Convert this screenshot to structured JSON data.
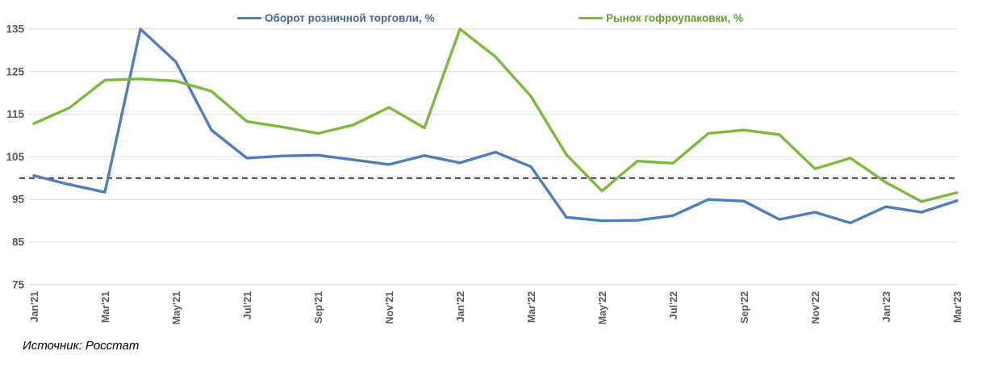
{
  "source_note": "Источник: Росстат",
  "legend": {
    "items": [
      {
        "label": "Оборот розничной торговли, %",
        "color": "#4E7EBE",
        "text_color": "#44699B"
      },
      {
        "label": "Рынок гофроупаковки, %",
        "color": "#7CBA3D",
        "text_color": "#63A02F"
      }
    ]
  },
  "chart_data": {
    "type": "line",
    "title": "",
    "xlabel": "",
    "ylabel": "",
    "x": [
      "Jan'21",
      "Feb'21",
      "Mar'21",
      "Apr'21",
      "May'21",
      "Jun'21",
      "Jul'21",
      "Aug'21",
      "Sep'21",
      "Oct'21",
      "Nov'21",
      "Dec'21",
      "Jan'22",
      "Feb'22",
      "Mar'22",
      "Apr'22",
      "May'22",
      "Jun'22",
      "Jul'22",
      "Aug'22",
      "Sep'22",
      "Oct'22",
      "Nov'22",
      "Dec'22",
      "Jan'23",
      "Feb'23",
      "Mar'23"
    ],
    "x_tick_labels": [
      "Jan'21",
      "Mar'21",
      "May'21",
      "Jul'21",
      "Sep'21",
      "Nov'21",
      "Jan'22",
      "Mar'22",
      "May'22",
      "Jul'22",
      "Sep'22",
      "Nov'22",
      "Jan'23",
      "Mar'23"
    ],
    "series": [
      {
        "name": "Оборот розничной торговли, %",
        "color": "#4E7EBE",
        "values": [
          100.6,
          98.5,
          96.7,
          135.0,
          127.3,
          111.3,
          104.7,
          105.2,
          105.4,
          104.3,
          103.2,
          105.3,
          103.6,
          106.1,
          102.7,
          90.8,
          90.0,
          90.1,
          91.2,
          95.0,
          94.6,
          90.3,
          92.0,
          89.5,
          93.3,
          92.0,
          94.7
        ]
      },
      {
        "name": "Рынок гофроупаковки, %",
        "color": "#7CBA3D",
        "values": [
          112.8,
          116.5,
          123.0,
          123.3,
          122.8,
          120.4,
          113.3,
          112.0,
          110.5,
          112.5,
          116.6,
          111.8,
          135.0,
          128.5,
          119.2,
          105.5,
          97.0,
          104.0,
          103.5,
          110.5,
          111.3,
          110.2,
          102.2,
          104.7,
          99.0,
          94.5,
          96.6
        ]
      }
    ],
    "yticks": [
      75,
      85,
      95,
      105,
      115,
      125,
      135
    ],
    "ylim": [
      75,
      137
    ],
    "reference_line": {
      "value": 100,
      "style": "dashed",
      "color": "#3A3A3A"
    },
    "grid": "horizontal",
    "legend_position": "top",
    "axis_label_color": "#595959",
    "gridline_color": "#D9D9D9"
  }
}
